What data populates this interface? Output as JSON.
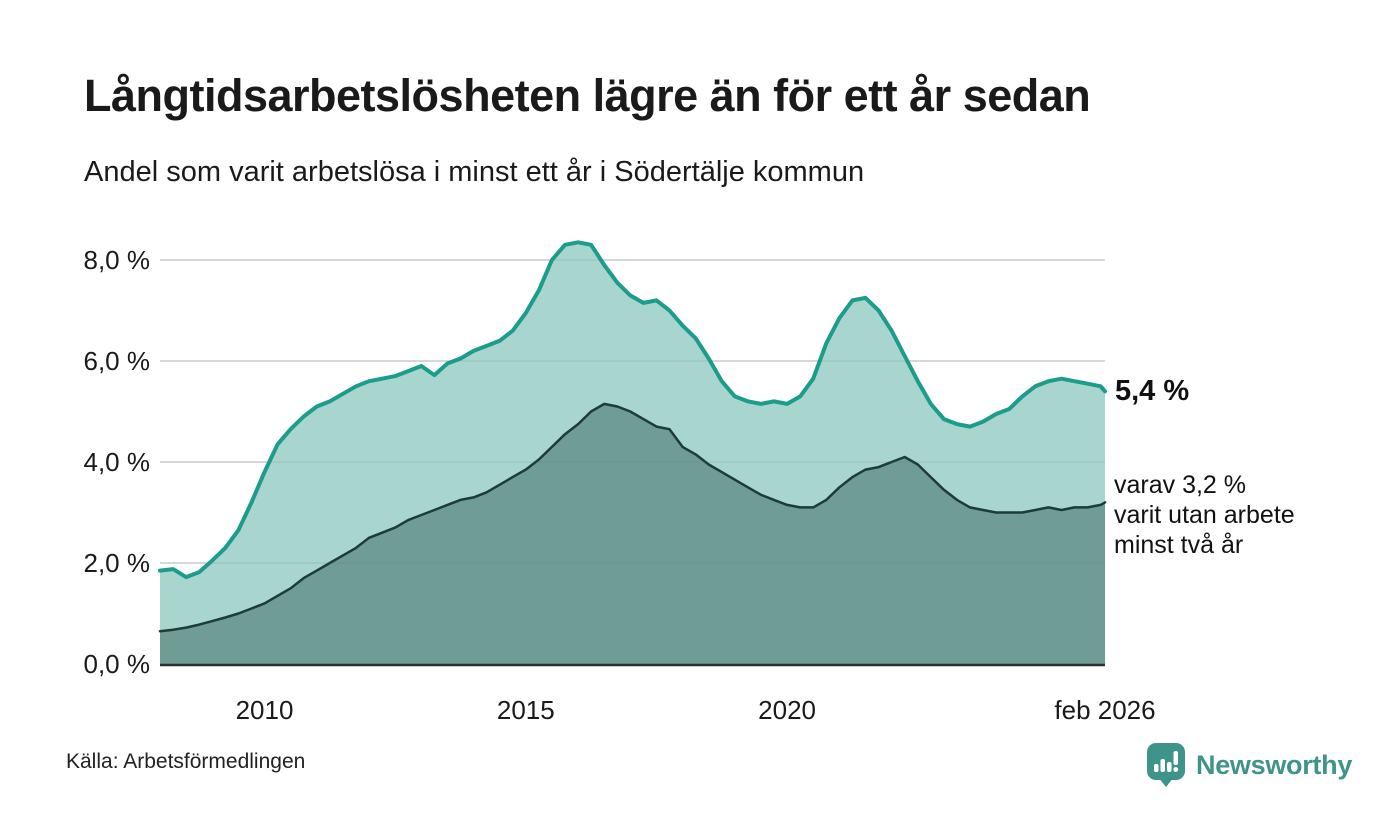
{
  "header": {
    "title": "Långtidsarbetslösheten lägre än för ett år sedan",
    "subtitle": "Andel som varit arbetslösa i minst ett år i Södertälje kommun"
  },
  "annotations": {
    "latest_value": "5,4 %",
    "secondary_line1": "varav 3,2 %",
    "secondary_line2": "varit utan arbete",
    "secondary_line3": "minst två år"
  },
  "footer": {
    "source": "Källa: Arbetsförmedlingen",
    "brand_name": "Newsworthy",
    "brand_icon": "newsworthy-bubble-barchart-icon"
  },
  "colors": {
    "series1_line": "#1c9c8b",
    "series1_fill": "#a8d6cf",
    "series2_line": "#1e3b38",
    "series2_fill": "#6f9c94",
    "gridline": "#dcdcdc",
    "gridline_overlay": "rgba(90,110,108,0.14)",
    "axis_baseline": "#2e2e2e",
    "text": "#1a1a1a",
    "brand": "#3e948b"
  },
  "chart_data": {
    "type": "area",
    "title": "Långtidsarbetslösheten lägre än för ett år sedan",
    "subtitle": "Andel som varit arbetslösa i minst ett år i Södertälje kommun",
    "unit": "%",
    "grid": true,
    "x_range": [
      2008.0,
      2026.083
    ],
    "y_range": [
      0,
      8.6
    ],
    "y_ticks": [
      {
        "v": 0,
        "label": "0,0 %"
      },
      {
        "v": 2,
        "label": "2,0 %"
      },
      {
        "v": 4,
        "label": "4,0 %"
      },
      {
        "v": 6,
        "label": "6,0 %"
      },
      {
        "v": 8,
        "label": "8,0 %"
      }
    ],
    "x_ticks": [
      {
        "x": 2010,
        "label": "2010"
      },
      {
        "x": 2015,
        "label": "2015"
      },
      {
        "x": 2020,
        "label": "2020"
      },
      {
        "x": 2026.083,
        "label": "feb 2026"
      }
    ],
    "series": [
      {
        "name": "Andel som varit arbetslösa minst ett år",
        "latest_label": "5,4 %",
        "x": [
          2008.0,
          2008.25,
          2008.5,
          2008.75,
          2009.0,
          2009.25,
          2009.5,
          2009.75,
          2010.0,
          2010.25,
          2010.5,
          2010.75,
          2011.0,
          2011.25,
          2011.5,
          2011.75,
          2012.0,
          2012.25,
          2012.5,
          2012.75,
          2013.0,
          2013.25,
          2013.5,
          2013.75,
          2014.0,
          2014.25,
          2014.5,
          2014.75,
          2015.0,
          2015.25,
          2015.5,
          2015.75,
          2016.0,
          2016.25,
          2016.5,
          2016.75,
          2017.0,
          2017.25,
          2017.5,
          2017.75,
          2018.0,
          2018.25,
          2018.5,
          2018.75,
          2019.0,
          2019.25,
          2019.5,
          2019.75,
          2020.0,
          2020.25,
          2020.5,
          2020.75,
          2021.0,
          2021.25,
          2021.5,
          2021.75,
          2022.0,
          2022.25,
          2022.5,
          2022.75,
          2023.0,
          2023.25,
          2023.5,
          2023.75,
          2024.0,
          2024.25,
          2024.5,
          2024.75,
          2025.0,
          2025.25,
          2025.5,
          2025.75,
          2026.0,
          2026.083
        ],
        "values": [
          1.85,
          1.88,
          1.72,
          1.82,
          2.05,
          2.3,
          2.65,
          3.2,
          3.8,
          4.35,
          4.65,
          4.9,
          5.1,
          5.2,
          5.35,
          5.5,
          5.6,
          5.65,
          5.7,
          5.8,
          5.9,
          5.72,
          5.95,
          6.05,
          6.2,
          6.3,
          6.4,
          6.6,
          6.95,
          7.4,
          8.0,
          8.3,
          8.35,
          8.3,
          7.9,
          7.55,
          7.3,
          7.15,
          7.2,
          7.0,
          6.7,
          6.45,
          6.05,
          5.6,
          5.3,
          5.2,
          5.15,
          5.2,
          5.15,
          5.3,
          5.65,
          6.35,
          6.85,
          7.2,
          7.25,
          7.0,
          6.6,
          6.1,
          5.6,
          5.15,
          4.85,
          4.75,
          4.7,
          4.8,
          4.95,
          5.05,
          5.3,
          5.5,
          5.6,
          5.65,
          5.6,
          5.55,
          5.5,
          5.4
        ]
      },
      {
        "name": "varav utan arbete minst två år",
        "latest_label": "3,2 %",
        "x": [
          2008.0,
          2008.25,
          2008.5,
          2008.75,
          2009.0,
          2009.25,
          2009.5,
          2009.75,
          2010.0,
          2010.25,
          2010.5,
          2010.75,
          2011.0,
          2011.25,
          2011.5,
          2011.75,
          2012.0,
          2012.25,
          2012.5,
          2012.75,
          2013.0,
          2013.25,
          2013.5,
          2013.75,
          2014.0,
          2014.25,
          2014.5,
          2014.75,
          2015.0,
          2015.25,
          2015.5,
          2015.75,
          2016.0,
          2016.25,
          2016.5,
          2016.75,
          2017.0,
          2017.25,
          2017.5,
          2017.75,
          2018.0,
          2018.25,
          2018.5,
          2018.75,
          2019.0,
          2019.25,
          2019.5,
          2019.75,
          2020.0,
          2020.25,
          2020.5,
          2020.75,
          2021.0,
          2021.25,
          2021.5,
          2021.75,
          2022.0,
          2022.25,
          2022.5,
          2022.75,
          2023.0,
          2023.25,
          2023.5,
          2023.75,
          2024.0,
          2024.25,
          2024.5,
          2024.75,
          2025.0,
          2025.25,
          2025.5,
          2025.75,
          2026.0,
          2026.083
        ],
        "values": [
          0.65,
          0.68,
          0.72,
          0.78,
          0.85,
          0.92,
          1.0,
          1.1,
          1.2,
          1.35,
          1.5,
          1.7,
          1.85,
          2.0,
          2.15,
          2.3,
          2.5,
          2.6,
          2.7,
          2.85,
          2.95,
          3.05,
          3.15,
          3.25,
          3.3,
          3.4,
          3.55,
          3.7,
          3.85,
          4.05,
          4.3,
          4.55,
          4.75,
          5.0,
          5.15,
          5.1,
          5.0,
          4.85,
          4.7,
          4.65,
          4.3,
          4.15,
          3.95,
          3.8,
          3.65,
          3.5,
          3.35,
          3.25,
          3.15,
          3.1,
          3.1,
          3.25,
          3.5,
          3.7,
          3.85,
          3.9,
          4.0,
          4.1,
          3.95,
          3.7,
          3.45,
          3.25,
          3.1,
          3.05,
          3.0,
          3.0,
          3.0,
          3.05,
          3.1,
          3.05,
          3.1,
          3.1,
          3.15,
          3.2
        ]
      }
    ],
    "legend_position": "none"
  }
}
